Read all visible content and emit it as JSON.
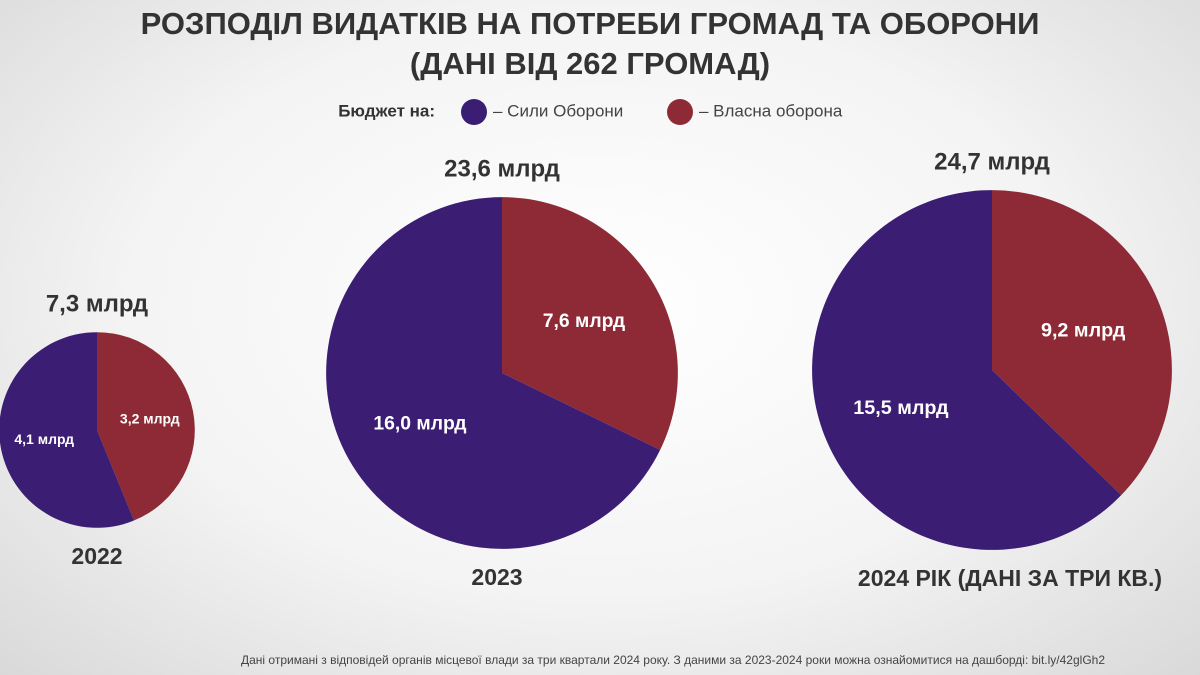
{
  "title": [
    "РОЗПОДІЛ ВИДАТКІВ НА ПОТРЕБИ ГРОМАД ТА ОБОРОНИ",
    "(ДАНІ ВІД 262 ГРОМАД)"
  ],
  "legend": {
    "title": "Бюджет на:",
    "items": [
      {
        "label": "– Сили Оборони",
        "color": "#3b1d73"
      },
      {
        "label": "– Власна оборона",
        "color": "#8e2a35"
      }
    ]
  },
  "chart_data": [
    {
      "type": "pie",
      "title": "2022",
      "total": 7.3,
      "total_label": "7,3 млрд",
      "values": [
        4.1,
        3.2
      ],
      "value_labels": [
        "4,1 млрд",
        "3,2 млрд"
      ]
    },
    {
      "type": "pie",
      "title": "2023",
      "total": 23.6,
      "total_label": "23,6 млрд",
      "values": [
        16.0,
        7.6
      ],
      "value_labels": [
        "16,0 млрд",
        "7,6 млрд"
      ]
    },
    {
      "type": "pie",
      "title": "2024 РІК (ДАНІ ЗА ТРИ КВ.)",
      "total": 24.7,
      "total_label": "24,7 млрд",
      "values": [
        15.5,
        9.2
      ],
      "value_labels": [
        "15,5 млрд",
        "9,2 млрд"
      ]
    }
  ],
  "footnote": "Дані отримані з відповідей органів місцевої влади за три квартали 2024 року. З даними за 2023-2024 роки можна ознайомитися на дашборді: bit.ly/42glGh2"
}
